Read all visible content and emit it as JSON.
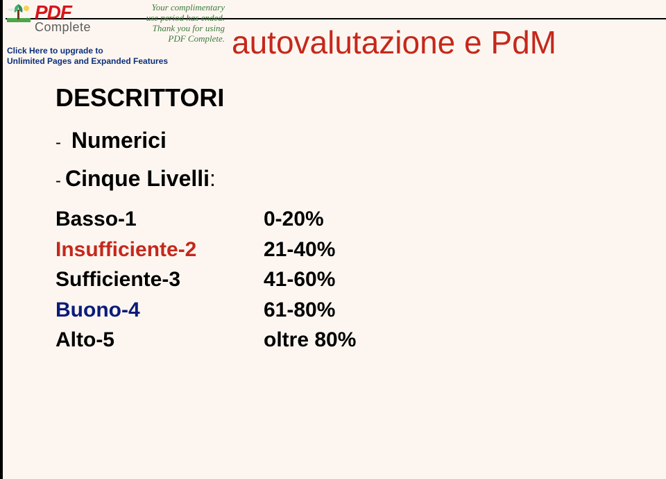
{
  "watermark": {
    "brand_pdf": "PDF",
    "brand_complete": "Complete",
    "msg_line1": "Your complimentary",
    "msg_line2": "use period has ended.",
    "msg_line3": "Thank you for using",
    "msg_line4": "PDF Complete.",
    "link1": "Click Here to upgrade to",
    "link2": "Unlimited Pages and Expanded Features"
  },
  "title": "autovalutazione e PdM",
  "body": {
    "descrittori": "DESCRITTORI",
    "numerici_dash": "-",
    "numerici": "Numerici",
    "cinque_dash": "-",
    "cinque": "Cinque Livelli",
    "cinque_colon": ":",
    "levels": [
      {
        "label": "Basso-1",
        "value": "0-20%",
        "label_color": "black",
        "value_color": "black"
      },
      {
        "label": "Insufficiente-2",
        "value": "21-40%",
        "label_color": "red",
        "value_color": "black"
      },
      {
        "label": "Sufficiente-3",
        "value": "41-60%",
        "label_color": "black",
        "value_color": "black"
      },
      {
        "label": "Buono-4",
        "value": "61-80%",
        "label_color": "blue",
        "value_color": "black"
      },
      {
        "label": "Alto-5",
        "value": "oltre 80%",
        "label_color": "black",
        "value_color": "black"
      }
    ]
  },
  "colors": {
    "black": "#000000",
    "red": "#c5281c",
    "blue": "#0b1b7a",
    "bg": "#fdf6f0"
  }
}
